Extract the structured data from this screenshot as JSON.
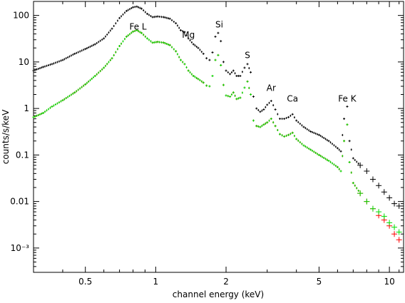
{
  "chart_data": {
    "type": "scatter",
    "xlabel": "channel energy (keV)",
    "ylabel": "counts/s/keV",
    "x_scale": "log",
    "y_scale": "log",
    "xlim": [
      0.3,
      11.5
    ],
    "ylim": [
      0.0003,
      200
    ],
    "x_tick_labels": [
      "0.5",
      "1",
      "2",
      "5",
      "10"
    ],
    "x_tick_values": [
      0.5,
      1,
      2,
      5,
      10
    ],
    "y_tick_labels": [
      "100",
      "10",
      "1",
      "0.1",
      "0.01",
      "10⁻³"
    ],
    "y_tick_values": [
      100,
      10,
      1,
      0.1,
      0.01,
      0.001
    ],
    "annotations": [
      {
        "text": "Fe  L",
        "x": 0.84,
        "y": 50
      },
      {
        "text": "Mg",
        "x": 1.38,
        "y": 33
      },
      {
        "text": "Si",
        "x": 1.87,
        "y": 55
      },
      {
        "text": "S",
        "x": 2.47,
        "y": 12
      },
      {
        "text": "Ar",
        "x": 3.12,
        "y": 2.4
      },
      {
        "text": "Ca",
        "x": 3.85,
        "y": 1.4
      },
      {
        "text": "Fe  K",
        "x": 6.6,
        "y": 1.4
      }
    ],
    "series": [
      {
        "color": "#000000",
        "points": [
          [
            0.3,
            6.5
          ],
          [
            0.33,
            7.8
          ],
          [
            0.36,
            9.0
          ],
          [
            0.4,
            11
          ],
          [
            0.45,
            15
          ],
          [
            0.5,
            19
          ],
          [
            0.55,
            24
          ],
          [
            0.6,
            32
          ],
          [
            0.65,
            52
          ],
          [
            0.7,
            88
          ],
          [
            0.75,
            125
          ],
          [
            0.8,
            150
          ],
          [
            0.83,
            155
          ],
          [
            0.87,
            140
          ],
          [
            0.92,
            108
          ],
          [
            0.97,
            92
          ],
          [
            1.02,
            95
          ],
          [
            1.08,
            92
          ],
          [
            1.15,
            85
          ],
          [
            1.22,
            68
          ],
          [
            1.28,
            48
          ],
          [
            1.33,
            44
          ],
          [
            1.38,
            32
          ],
          [
            1.45,
            24
          ],
          [
            1.52,
            20
          ],
          [
            1.6,
            15
          ],
          [
            1.65,
            12
          ],
          [
            1.7,
            11
          ],
          [
            1.75,
            16
          ],
          [
            1.8,
            35
          ],
          [
            1.85,
            42
          ],
          [
            1.9,
            28
          ],
          [
            1.95,
            10
          ],
          [
            2.0,
            6.5
          ],
          [
            2.08,
            5.5
          ],
          [
            2.15,
            6.5
          ],
          [
            2.22,
            5.0
          ],
          [
            2.3,
            5.0
          ],
          [
            2.4,
            7.5
          ],
          [
            2.47,
            9.0
          ],
          [
            2.55,
            6.0
          ],
          [
            2.62,
            1.8
          ],
          [
            2.7,
            1.0
          ],
          [
            2.8,
            0.85
          ],
          [
            2.9,
            0.95
          ],
          [
            3.0,
            1.2
          ],
          [
            3.12,
            1.45
          ],
          [
            3.25,
            0.95
          ],
          [
            3.4,
            0.6
          ],
          [
            3.55,
            0.6
          ],
          [
            3.7,
            0.65
          ],
          [
            3.85,
            0.75
          ],
          [
            4.0,
            0.55
          ],
          [
            4.3,
            0.4
          ],
          [
            4.6,
            0.32
          ],
          [
            5.0,
            0.27
          ],
          [
            5.5,
            0.2
          ],
          [
            6.0,
            0.14
          ],
          [
            6.2,
            0.12
          ],
          [
            6.4,
            0.6
          ],
          [
            6.6,
            1.1
          ],
          [
            6.75,
            0.2
          ],
          [
            7.0,
            0.085
          ],
          [
            7.5,
            0.06
          ],
          [
            8.0,
            0.045
          ],
          [
            8.5,
            0.03
          ],
          [
            9.0,
            0.022
          ],
          [
            9.5,
            0.016
          ],
          [
            10.0,
            0.012
          ],
          [
            10.5,
            0.009
          ],
          [
            11.0,
            0.008
          ]
        ]
      },
      {
        "color": "#ff0000",
        "points": [
          [
            0.3,
            0.65
          ],
          [
            0.33,
            0.8
          ],
          [
            0.36,
            1.1
          ],
          [
            0.4,
            1.5
          ],
          [
            0.45,
            2.2
          ],
          [
            0.5,
            3.3
          ],
          [
            0.55,
            5.0
          ],
          [
            0.6,
            7.5
          ],
          [
            0.65,
            12
          ],
          [
            0.7,
            22
          ],
          [
            0.75,
            35
          ],
          [
            0.8,
            45
          ],
          [
            0.83,
            48
          ],
          [
            0.87,
            42
          ],
          [
            0.92,
            32
          ],
          [
            0.97,
            26
          ],
          [
            1.02,
            27
          ],
          [
            1.08,
            26
          ],
          [
            1.15,
            23
          ],
          [
            1.22,
            17
          ],
          [
            1.28,
            11
          ],
          [
            1.33,
            9.0
          ],
          [
            1.38,
            6.5
          ],
          [
            1.45,
            5.0
          ],
          [
            1.52,
            4.3
          ],
          [
            1.6,
            3.6
          ],
          [
            1.65,
            3.1
          ],
          [
            1.7,
            3.0
          ],
          [
            1.75,
            5.0
          ],
          [
            1.8,
            11
          ],
          [
            1.85,
            14
          ],
          [
            1.9,
            8.5
          ],
          [
            1.95,
            3.2
          ],
          [
            2.0,
            1.9
          ],
          [
            2.08,
            1.8
          ],
          [
            2.15,
            2.2
          ],
          [
            2.22,
            1.6
          ],
          [
            2.3,
            1.7
          ],
          [
            2.4,
            2.8
          ],
          [
            2.47,
            3.8
          ],
          [
            2.55,
            2.0
          ],
          [
            2.62,
            0.55
          ],
          [
            2.7,
            0.42
          ],
          [
            2.8,
            0.4
          ],
          [
            2.9,
            0.45
          ],
          [
            3.0,
            0.5
          ],
          [
            3.12,
            0.6
          ],
          [
            3.25,
            0.42
          ],
          [
            3.4,
            0.28
          ],
          [
            3.55,
            0.25
          ],
          [
            3.7,
            0.27
          ],
          [
            3.85,
            0.3
          ],
          [
            4.0,
            0.22
          ],
          [
            4.3,
            0.16
          ],
          [
            4.6,
            0.13
          ],
          [
            5.0,
            0.1
          ],
          [
            5.5,
            0.075
          ],
          [
            6.0,
            0.055
          ],
          [
            6.2,
            0.045
          ],
          [
            6.4,
            0.2
          ],
          [
            6.6,
            0.45
          ],
          [
            6.75,
            0.07
          ],
          [
            7.0,
            0.025
          ],
          [
            7.5,
            0.015
          ],
          [
            8.0,
            0.01
          ],
          [
            8.5,
            0.007
          ],
          [
            9.0,
            0.005
          ],
          [
            9.5,
            0.004
          ],
          [
            10.0,
            0.003
          ],
          [
            10.5,
            0.002
          ],
          [
            11.0,
            0.0015
          ]
        ]
      },
      {
        "color": "#00dd00",
        "points": [
          [
            0.3,
            0.65
          ],
          [
            0.33,
            0.8
          ],
          [
            0.36,
            1.1
          ],
          [
            0.4,
            1.5
          ],
          [
            0.45,
            2.2
          ],
          [
            0.5,
            3.3
          ],
          [
            0.55,
            5.0
          ],
          [
            0.6,
            7.5
          ],
          [
            0.65,
            12
          ],
          [
            0.7,
            22
          ],
          [
            0.75,
            35
          ],
          [
            0.8,
            45
          ],
          [
            0.83,
            48
          ],
          [
            0.87,
            42
          ],
          [
            0.92,
            32
          ],
          [
            0.97,
            26
          ],
          [
            1.02,
            27
          ],
          [
            1.08,
            26
          ],
          [
            1.15,
            23
          ],
          [
            1.22,
            17
          ],
          [
            1.28,
            11
          ],
          [
            1.33,
            9.0
          ],
          [
            1.38,
            6.5
          ],
          [
            1.45,
            5.0
          ],
          [
            1.52,
            4.3
          ],
          [
            1.6,
            3.6
          ],
          [
            1.65,
            3.1
          ],
          [
            1.7,
            3.0
          ],
          [
            1.75,
            5.0
          ],
          [
            1.8,
            11
          ],
          [
            1.85,
            14
          ],
          [
            1.9,
            8.5
          ],
          [
            1.95,
            3.2
          ],
          [
            2.0,
            1.9
          ],
          [
            2.08,
            1.8
          ],
          [
            2.15,
            2.2
          ],
          [
            2.22,
            1.6
          ],
          [
            2.3,
            1.7
          ],
          [
            2.4,
            2.8
          ],
          [
            2.47,
            3.8
          ],
          [
            2.55,
            2.0
          ],
          [
            2.62,
            0.55
          ],
          [
            2.7,
            0.42
          ],
          [
            2.8,
            0.4
          ],
          [
            2.9,
            0.45
          ],
          [
            3.0,
            0.5
          ],
          [
            3.12,
            0.6
          ],
          [
            3.25,
            0.42
          ],
          [
            3.4,
            0.28
          ],
          [
            3.55,
            0.25
          ],
          [
            3.7,
            0.27
          ],
          [
            3.85,
            0.3
          ],
          [
            4.0,
            0.22
          ],
          [
            4.3,
            0.16
          ],
          [
            4.6,
            0.13
          ],
          [
            5.0,
            0.1
          ],
          [
            5.5,
            0.075
          ],
          [
            6.0,
            0.055
          ],
          [
            6.2,
            0.045
          ],
          [
            6.4,
            0.2
          ],
          [
            6.6,
            0.45
          ],
          [
            6.75,
            0.07
          ],
          [
            7.0,
            0.025
          ],
          [
            7.5,
            0.015
          ],
          [
            8.0,
            0.01
          ],
          [
            8.5,
            0.007
          ],
          [
            9.0,
            0.006
          ],
          [
            9.5,
            0.0048
          ],
          [
            10.0,
            0.0035
          ],
          [
            10.5,
            0.0028
          ],
          [
            11.0,
            0.0022
          ]
        ]
      }
    ]
  }
}
